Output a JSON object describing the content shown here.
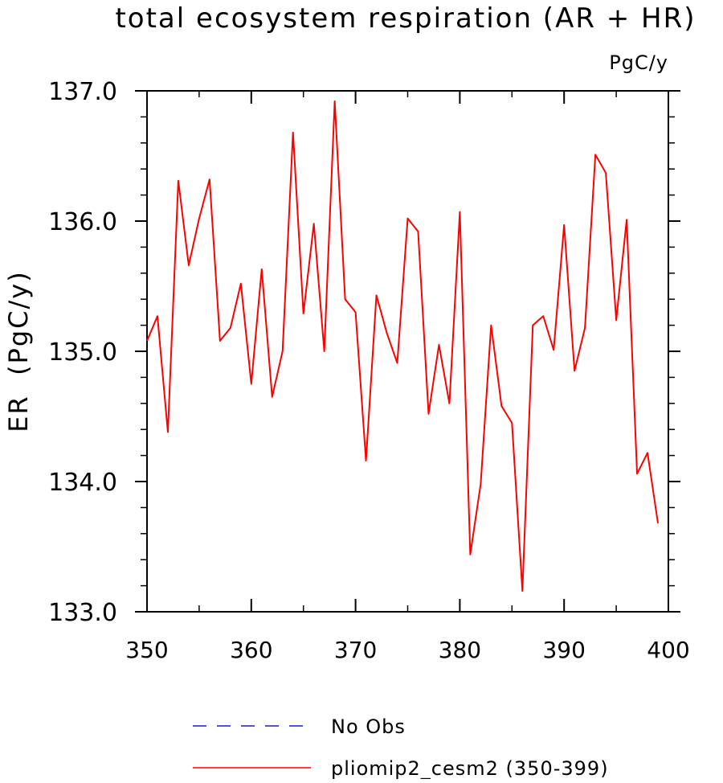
{
  "chart_data": {
    "type": "line",
    "title": "total ecosystem respiration (AR + HR)",
    "units": "PgC/y",
    "ylabel": "ER  (PgC/y)",
    "xlabel": "",
    "xlim": [
      350,
      400
    ],
    "ylim": [
      133.0,
      137.0
    ],
    "x_ticks": [
      350,
      360,
      370,
      380,
      390,
      400
    ],
    "x_tick_labels": [
      "350",
      "360",
      "370",
      "380",
      "390",
      "400"
    ],
    "y_ticks": [
      133.0,
      134.0,
      135.0,
      136.0,
      137.0
    ],
    "y_tick_labels": [
      "133.0",
      "134.0",
      "135.0",
      "136.0",
      "137.0"
    ],
    "grid": false,
    "legend_position": "bottom",
    "series": [
      {
        "name": "No Obs",
        "color": "#1a1acc",
        "dash": "dashed",
        "x": [],
        "values": []
      },
      {
        "name": "pliomip2_cesm2 (350-399)",
        "color": "#ff0000",
        "dash": "solid",
        "x": [
          350,
          351,
          352,
          353,
          354,
          355,
          356,
          357,
          358,
          359,
          360,
          361,
          362,
          363,
          364,
          365,
          366,
          367,
          368,
          369,
          370,
          371,
          372,
          373,
          374,
          375,
          376,
          377,
          378,
          379,
          380,
          381,
          382,
          383,
          384,
          385,
          386,
          387,
          388,
          389,
          390,
          391,
          392,
          393,
          394,
          395,
          396,
          397,
          398,
          399
        ],
        "values": [
          135.08,
          135.27,
          134.38,
          136.31,
          135.66,
          136.02,
          136.32,
          135.08,
          135.18,
          135.52,
          134.75,
          135.63,
          134.65,
          135.0,
          136.68,
          135.29,
          135.98,
          135.0,
          136.92,
          135.4,
          135.3,
          134.16,
          135.43,
          135.14,
          134.91,
          136.02,
          135.92,
          134.52,
          135.05,
          134.6,
          136.07,
          133.44,
          133.98,
          135.2,
          134.58,
          134.45,
          133.16,
          135.2,
          135.27,
          135.01,
          135.97,
          134.85,
          135.18,
          136.51,
          136.37,
          135.24,
          136.01,
          134.06,
          134.22,
          133.68
        ]
      }
    ]
  }
}
